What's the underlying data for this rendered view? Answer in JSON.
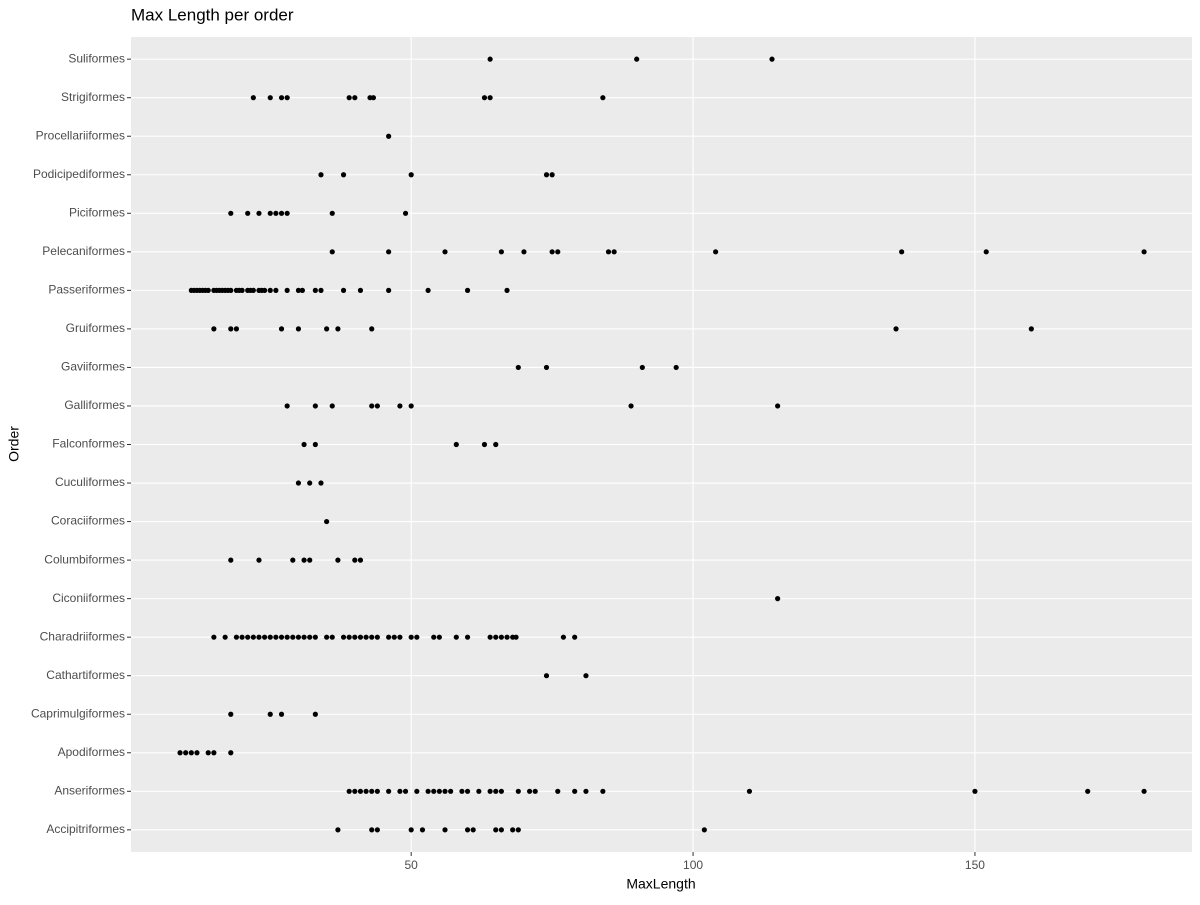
{
  "chart_data": {
    "type": "dotstrip",
    "title": "Max Length per order",
    "x_label": "MaxLength",
    "y_label": "Order",
    "categories": [
      "Accipitriformes",
      "Anseriformes",
      "Apodiformes",
      "Caprimulgiformes",
      "Cathartiformes",
      "Charadriiformes",
      "Ciconiiformes",
      "Columbiformes",
      "Coraciiformes",
      "Cuculiformes",
      "Falconformes",
      "Galliformes",
      "Gaviiformes",
      "Gruiformes",
      "Passeriformes",
      "Pelecaniformes",
      "Piciformes",
      "Podicipediformes",
      "Procellariiformes",
      "Strigiformes",
      "Suliformes"
    ],
    "values": [
      [
        37,
        43,
        44,
        50,
        52,
        56,
        60,
        61,
        65,
        66,
        68,
        69,
        102
      ],
      [
        39,
        40,
        41,
        42,
        43,
        44,
        46,
        48,
        49,
        51,
        53,
        54,
        55,
        56,
        57,
        59,
        60,
        62,
        64,
        65,
        66,
        69,
        71,
        72,
        76,
        79,
        81,
        84,
        110,
        150,
        170,
        180
      ],
      [
        9,
        10,
        11,
        12,
        14,
        15,
        18
      ],
      [
        18,
        25,
        27,
        33
      ],
      [
        74,
        81
      ],
      [
        15,
        17,
        19,
        20,
        21,
        22,
        23,
        24,
        25,
        26,
        27,
        28,
        29,
        30,
        31,
        32,
        33,
        35,
        36,
        38,
        39,
        40,
        41,
        42,
        43,
        44,
        46,
        47,
        48,
        50,
        51,
        54,
        55,
        58,
        60,
        64,
        65,
        66,
        67,
        68,
        68.6,
        77,
        79
      ],
      [
        115
      ],
      [
        18,
        23,
        29,
        31,
        32,
        37,
        40,
        41
      ],
      [
        35
      ],
      [
        30,
        32,
        34
      ],
      [
        31,
        33,
        58,
        63,
        65
      ],
      [
        28,
        33,
        36,
        43,
        44,
        48,
        50,
        89,
        115
      ],
      [
        69,
        74,
        91,
        97
      ],
      [
        15,
        18,
        19,
        27,
        30,
        35,
        37,
        43,
        136,
        160
      ],
      [
        11,
        11.5,
        12,
        12.5,
        13,
        13.5,
        14,
        15,
        15.5,
        16,
        16.5,
        17,
        17.5,
        18,
        19,
        19.5,
        20,
        21,
        21.5,
        22,
        23,
        23.5,
        24,
        25,
        26,
        28,
        30,
        30.7,
        33,
        34,
        38,
        41,
        46,
        53,
        60,
        67
      ],
      [
        36,
        46,
        56,
        66,
        70,
        75,
        76,
        85,
        86,
        104,
        137,
        152,
        180
      ],
      [
        18,
        21,
        23,
        25,
        26,
        27,
        28,
        36,
        49
      ],
      [
        34,
        38,
        50,
        74,
        75
      ],
      [
        46
      ],
      [
        22,
        25,
        27,
        28,
        39,
        40,
        42.7,
        43.3,
        63,
        64,
        84
      ],
      [
        64,
        90,
        114
      ]
    ],
    "color": "#000000",
    "xlim": [
      0.3,
      188.5
    ],
    "xticks": [
      50,
      100,
      150
    ],
    "grid": true
  }
}
